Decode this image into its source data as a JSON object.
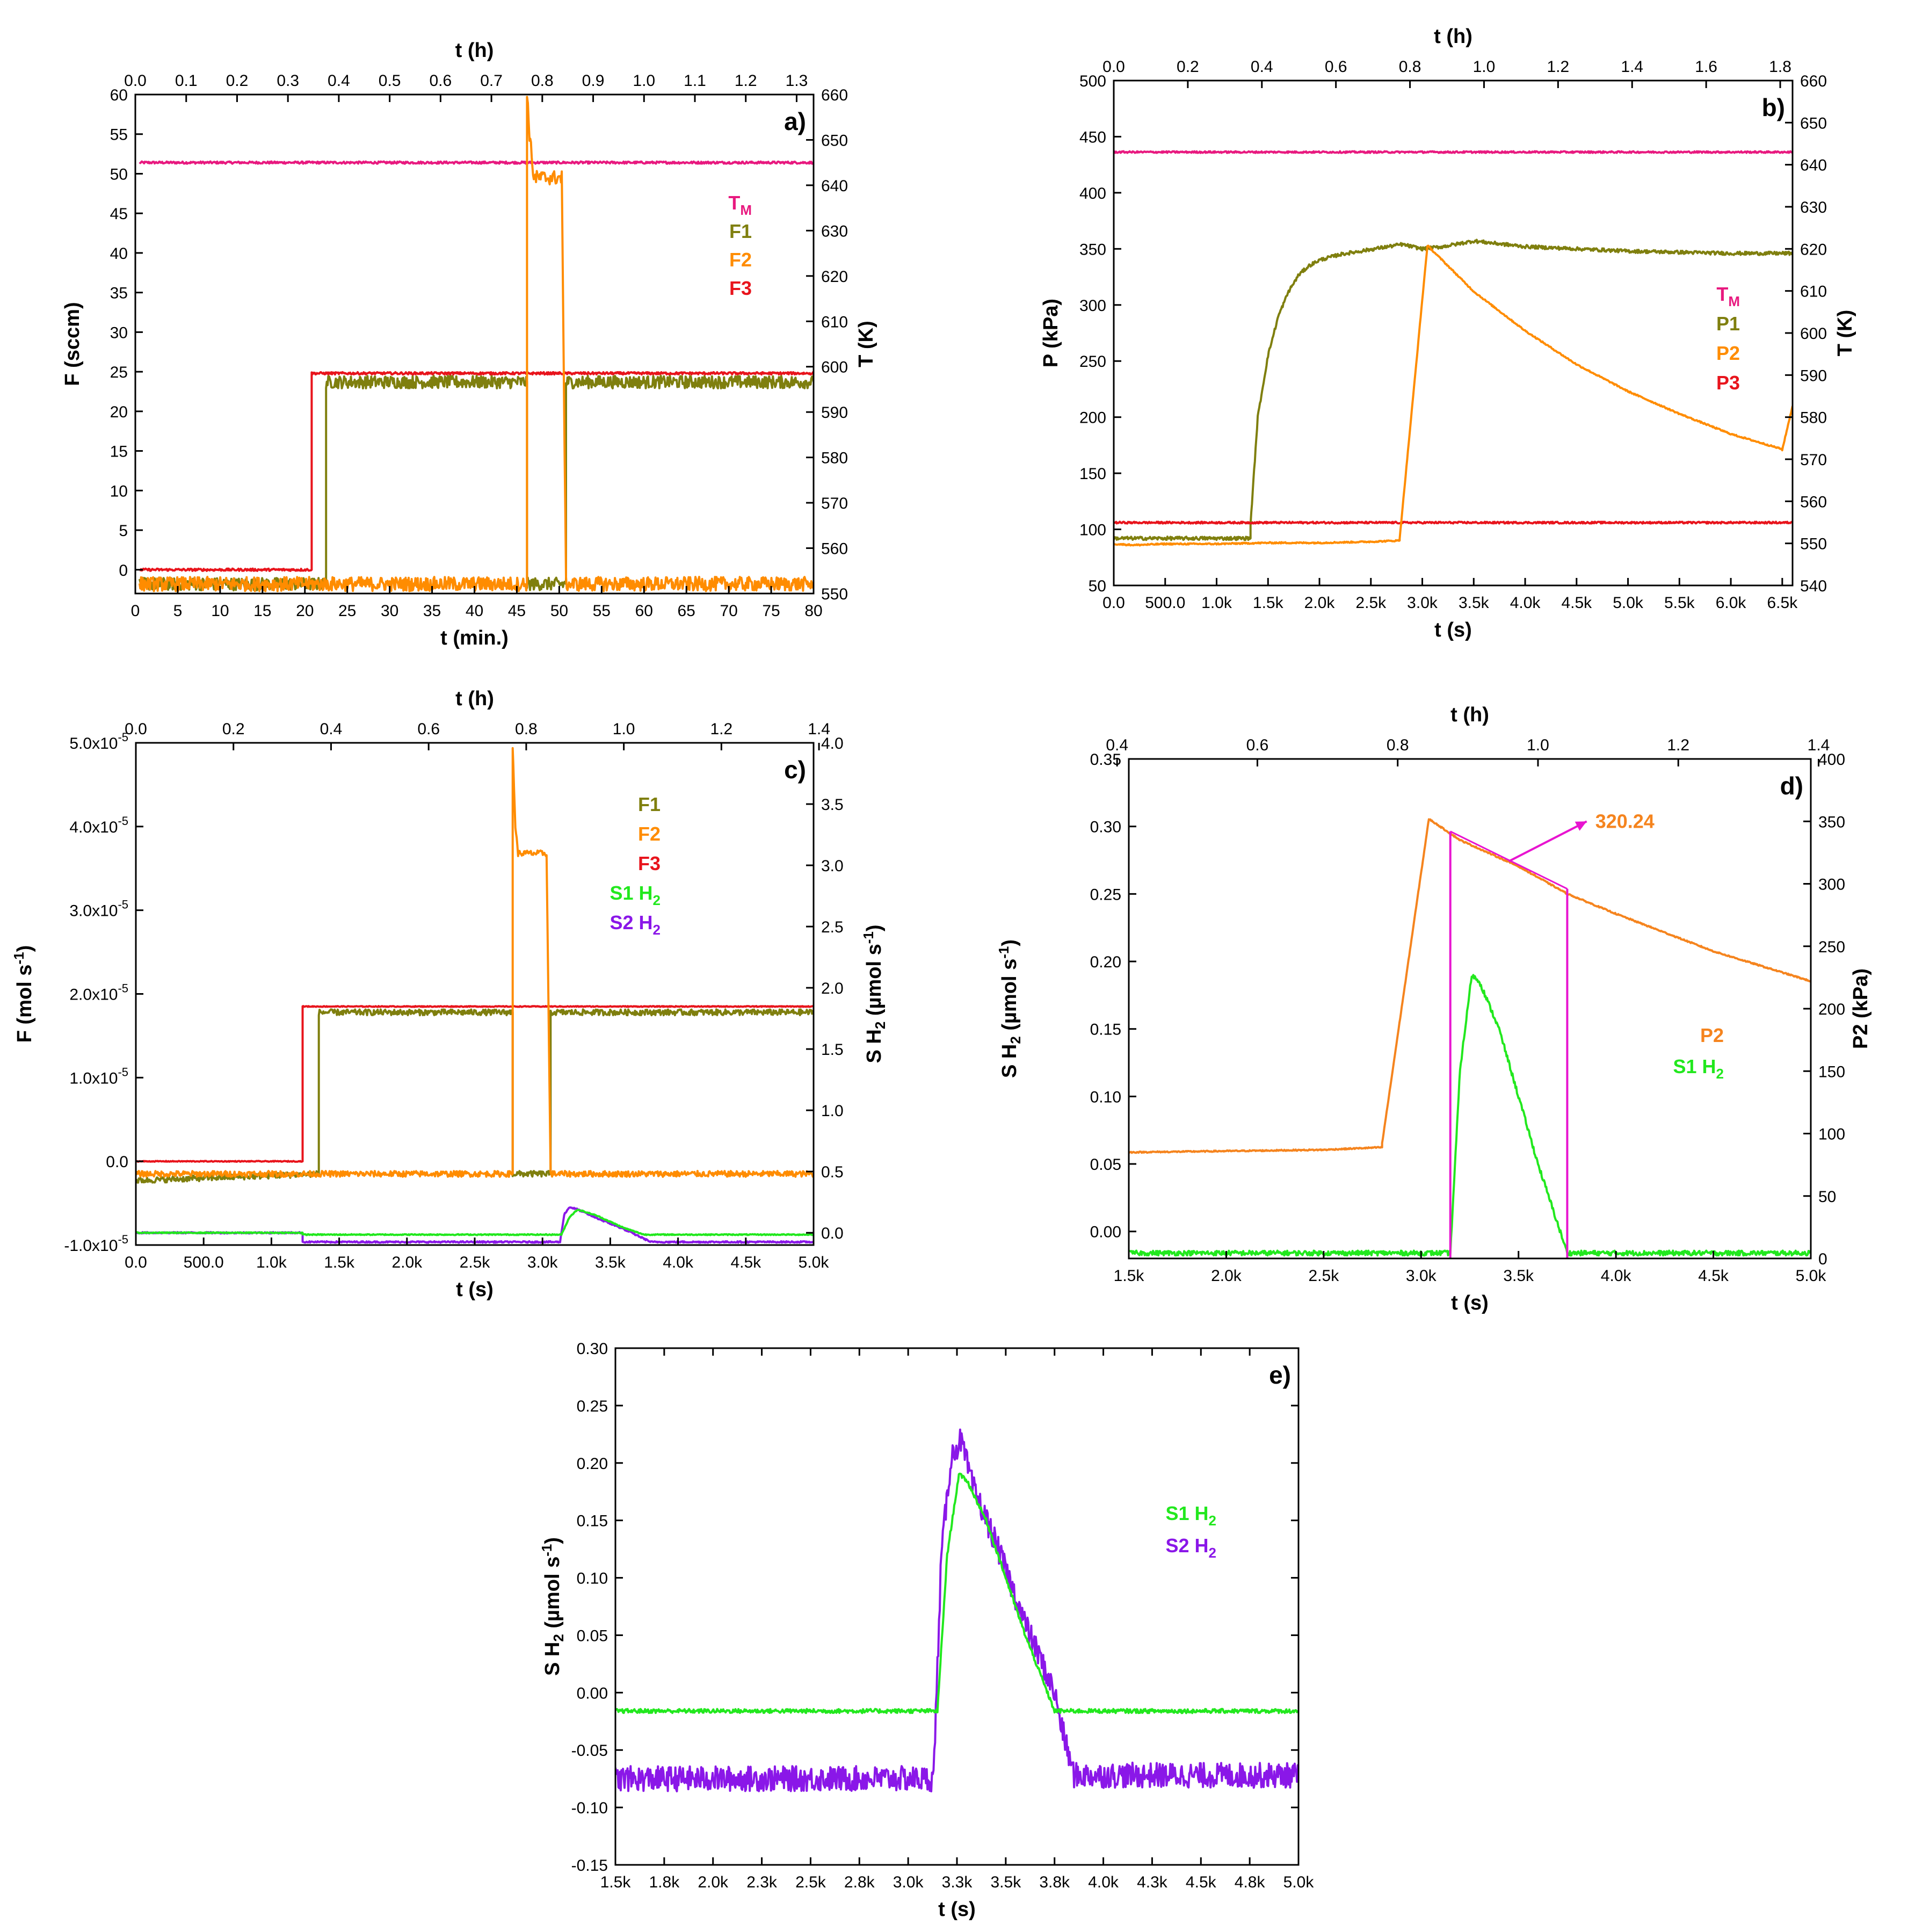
{
  "figure_title": "",
  "colors": {
    "TM": "#e8197f",
    "F1": "#7f7f0e",
    "F2": "#ff8c00",
    "F3": "#e8141c",
    "S1": "#22e81e",
    "S2": "#8a17e8",
    "P2_d": "#f5841e",
    "annot": "#e814d0"
  },
  "chart_data": [
    {
      "id": "a",
      "type": "line",
      "panel_label": "a)",
      "xlabel": "t (min.)",
      "top_xlabel": "t (h)",
      "ylabel": "F (sccm)",
      "y2label": "T (K)",
      "xlim": [
        0,
        80
      ],
      "ylim": [
        -3,
        60
      ],
      "y2lim": [
        550,
        660
      ],
      "top_xlim": [
        0,
        1.3333
      ],
      "xticks": [
        "0",
        "5",
        "10",
        "15",
        "20",
        "25",
        "30",
        "35",
        "40",
        "45",
        "50",
        "55",
        "60",
        "65",
        "70",
        "75",
        "80"
      ],
      "xtick_values": [
        0,
        5,
        10,
        15,
        20,
        25,
        30,
        35,
        40,
        45,
        50,
        55,
        60,
        65,
        70,
        75,
        80
      ],
      "top_xticks": [
        "0.0",
        "0.1",
        "0.2",
        "0.3",
        "0.4",
        "0.5",
        "0.6",
        "0.7",
        "0.8",
        "0.9",
        "1.0",
        "1.1",
        "1.2",
        "1.3"
      ],
      "top_xtick_values": [
        0,
        0.1,
        0.2,
        0.3,
        0.4,
        0.5,
        0.6,
        0.7,
        0.8,
        0.9,
        1.0,
        1.1,
        1.2,
        1.3
      ],
      "yticks": [
        "0",
        "5",
        "10",
        "15",
        "20",
        "25",
        "30",
        "35",
        "40",
        "45",
        "50",
        "55",
        "60"
      ],
      "ytick_values": [
        0,
        5,
        10,
        15,
        20,
        25,
        30,
        35,
        40,
        45,
        50,
        55,
        60
      ],
      "y2ticks": [
        "550",
        "560",
        "570",
        "580",
        "590",
        "600",
        "610",
        "620",
        "630",
        "640",
        "650",
        "660"
      ],
      "y2tick_values": [
        550,
        560,
        570,
        580,
        590,
        600,
        610,
        620,
        630,
        640,
        650,
        660
      ],
      "legend": [
        {
          "label": "T",
          "sub": "M",
          "color": "#e8197f"
        },
        {
          "label": "F1",
          "sub": "",
          "color": "#7f7f0e"
        },
        {
          "label": "F2",
          "sub": "",
          "color": "#ff8c00"
        },
        {
          "label": "F3",
          "sub": "",
          "color": "#e8141c"
        }
      ],
      "series": [
        {
          "name": "T_M",
          "color": "#e8197f",
          "axis": "y2",
          "noise": 0.25,
          "x": [
            0.5,
            80
          ],
          "y": [
            645,
            645
          ]
        },
        {
          "name": "F1",
          "color": "#7f7f0e",
          "axis": "y",
          "noise": 0.8,
          "x": [
            0.5,
            22.5,
            22.5,
            46.2,
            46.2,
            50.8,
            50.8,
            80
          ],
          "y": [
            -1.8,
            -1.8,
            23.7,
            23.7,
            -1.8,
            -1.8,
            23.7,
            23.7
          ]
        },
        {
          "name": "F3",
          "color": "#e8141c",
          "axis": "y",
          "noise": 0.15,
          "x": [
            0.5,
            20.8,
            20.8,
            80
          ],
          "y": [
            0,
            0,
            24.8,
            24.8
          ]
        },
        {
          "name": "F2",
          "color": "#ff8c00",
          "axis": "y",
          "noise": 0.9,
          "x": [
            0.5,
            46.2,
            46.2,
            46.5,
            47,
            50.3,
            50.8,
            80
          ],
          "y": [
            -1.8,
            -1.8,
            60,
            55,
            49.5,
            49.5,
            -1.8,
            -1.8
          ]
        }
      ]
    },
    {
      "id": "b",
      "type": "line",
      "panel_label": "b)",
      "xlabel": "t (s)",
      "top_xlabel": "t (h)",
      "ylabel": "P (kPa)",
      "y2label": "T (K)",
      "xlim": [
        0,
        6600
      ],
      "ylim": [
        50,
        500
      ],
      "y2lim": [
        540,
        660
      ],
      "top_xlim": [
        0,
        1.8333
      ],
      "xticks": [
        "0.0",
        "500.0",
        "1.0k",
        "1.5k",
        "2.0k",
        "2.5k",
        "3.0k",
        "3.5k",
        "4.0k",
        "4.5k",
        "5.0k",
        "5.5k",
        "6.0k",
        "6.5k"
      ],
      "xtick_values": [
        0,
        500,
        1000,
        1500,
        2000,
        2500,
        3000,
        3500,
        4000,
        4500,
        5000,
        5500,
        6000,
        6500
      ],
      "top_xticks": [
        "0.0",
        "0.2",
        "0.4",
        "0.6",
        "0.8",
        "1.0",
        "1.2",
        "1.4",
        "1.6",
        "1.8"
      ],
      "top_xtick_values": [
        0,
        0.2,
        0.4,
        0.6,
        0.8,
        1.0,
        1.2,
        1.4,
        1.6,
        1.8
      ],
      "yticks": [
        "50",
        "100",
        "150",
        "200",
        "250",
        "300",
        "350",
        "400",
        "450",
        "500"
      ],
      "ytick_values": [
        50,
        100,
        150,
        200,
        250,
        300,
        350,
        400,
        450,
        500
      ],
      "y2ticks": [
        "540",
        "550",
        "560",
        "570",
        "580",
        "590",
        "600",
        "610",
        "620",
        "630",
        "640",
        "650",
        "660"
      ],
      "y2tick_values": [
        540,
        550,
        560,
        570,
        580,
        590,
        600,
        610,
        620,
        630,
        640,
        650,
        660
      ],
      "legend": [
        {
          "label": "T",
          "sub": "M",
          "color": "#e8197f"
        },
        {
          "label": "P1",
          "sub": "",
          "color": "#7f7f0e"
        },
        {
          "label": "P2",
          "sub": "",
          "color": "#ff8c00"
        },
        {
          "label": "P3",
          "sub": "",
          "color": "#e8141c"
        }
      ],
      "series": [
        {
          "name": "T_M",
          "color": "#e8197f",
          "axis": "y2",
          "noise": 0.2,
          "x": [
            0,
            6600
          ],
          "y": [
            643,
            643
          ]
        },
        {
          "name": "P1",
          "color": "#7f7f0e",
          "axis": "y",
          "noise": 1.5,
          "x": [
            0,
            1330,
            1330,
            1400,
            1500,
            1600,
            1700,
            1800,
            1900,
            2000,
            2200,
            2400,
            2600,
            2800,
            3000,
            3200,
            3500,
            4000,
            5000,
            6000,
            6600
          ],
          "y": [
            92,
            92,
            105,
            200,
            255,
            290,
            312,
            327,
            335,
            340,
            345,
            348,
            351,
            354,
            350,
            352,
            357,
            352,
            348,
            346,
            346
          ]
        },
        {
          "name": "P3",
          "color": "#e8141c",
          "axis": "y",
          "noise": 0.8,
          "x": [
            0,
            6600
          ],
          "y": [
            106,
            106
          ]
        },
        {
          "name": "P2",
          "color": "#ff8c00",
          "axis": "y",
          "noise": 0.6,
          "x": [
            0,
            200,
            500,
            1000,
            1500,
            2000,
            2500,
            2780,
            2780,
            3050,
            3500,
            4000,
            4500,
            5000,
            5500,
            6000,
            6480,
            6500,
            6600
          ],
          "y": [
            87,
            86,
            87,
            87,
            88,
            88,
            89,
            90,
            92,
            353,
            312,
            277,
            247,
            223,
            203,
            185,
            172,
            171,
            210
          ]
        }
      ]
    },
    {
      "id": "c",
      "type": "line",
      "panel_label": "c)",
      "xlabel": "t (s)",
      "top_xlabel": "t (h)",
      "ylabel": "F (mol s",
      "ylabel_sup": "-1",
      "ylabel_end": ")",
      "y2label": "S H",
      "y2label_sub": "2",
      "y2label_mid": " (µmol s",
      "y2label_sup": "-1",
      "y2label_end": ")",
      "xlim": [
        0,
        5000
      ],
      "ylim": [
        -1e-05,
        5e-05
      ],
      "y2lim": [
        -0.1,
        4.0
      ],
      "top_xlim": [
        0,
        1.3889
      ],
      "xticks": [
        "0.0",
        "500.0",
        "1.0k",
        "1.5k",
        "2.0k",
        "2.5k",
        "3.0k",
        "3.5k",
        "4.0k",
        "4.5k",
        "5.0k"
      ],
      "xtick_values": [
        0,
        500,
        1000,
        1500,
        2000,
        2500,
        3000,
        3500,
        4000,
        4500,
        5000
      ],
      "top_xticks": [
        "0.0",
        "0.2",
        "0.4",
        "0.6",
        "0.8",
        "1.0",
        "1.2",
        "1.4"
      ],
      "top_xtick_values": [
        0,
        0.2,
        0.4,
        0.6,
        0.8,
        1.0,
        1.2,
        1.4
      ],
      "yticks_mant": [
        "-1.0x10",
        "0.0",
        "1.0x10",
        "2.0x10",
        "3.0x10",
        "4.0x10",
        "5.0x10"
      ],
      "yticks_exp": [
        "-5",
        "",
        "-5",
        "-5",
        "-5",
        "-5",
        "-5"
      ],
      "ytick_values": [
        -1e-05,
        0,
        1e-05,
        2e-05,
        3e-05,
        4e-05,
        5e-05
      ],
      "y2ticks": [
        "0.0",
        "0.5",
        "1.0",
        "1.5",
        "2.0",
        "2.5",
        "3.0",
        "3.5",
        "4.0"
      ],
      "y2tick_values": [
        0,
        0.5,
        1.0,
        1.5,
        2.0,
        2.5,
        3.0,
        3.5,
        4.0
      ],
      "legend": [
        {
          "label": "F1",
          "sub": "",
          "color": "#7f7f0e"
        },
        {
          "label": "F2",
          "sub": "",
          "color": "#ff8c00"
        },
        {
          "label": "F3",
          "sub": "",
          "color": "#e8141c"
        },
        {
          "label": "S1 H",
          "sub": "2",
          "color": "#22e81e"
        },
        {
          "label": "S2 H",
          "sub": "2",
          "color": "#8a17e8"
        }
      ],
      "series": [
        {
          "name": "F1",
          "color": "#7f7f0e",
          "axis": "y",
          "noise": 3.5e-07,
          "x": [
            0,
            1350,
            1350,
            2780,
            2780,
            3060,
            3060,
            5000
          ],
          "y": [
            -2.3e-06,
            -1.5e-06,
            1.78e-05,
            1.78e-05,
            -1.5e-06,
            -1.5e-06,
            1.78e-05,
            1.78e-05
          ]
        },
        {
          "name": "F3",
          "color": "#e8141c",
          "axis": "y",
          "noise": 5e-08,
          "x": [
            0,
            1230,
            1230,
            5000
          ],
          "y": [
            0,
            0,
            1.85e-05,
            1.85e-05
          ]
        },
        {
          "name": "F2",
          "color": "#ff8c00",
          "axis": "y",
          "noise": 3.5e-07,
          "x": [
            0,
            2780,
            2780,
            2800,
            2820,
            3030,
            3060,
            5000
          ],
          "y": [
            -1.5e-06,
            -1.5e-06,
            4.95e-05,
            4e-05,
            3.68e-05,
            3.68e-05,
            -1.5e-06,
            -1.5e-06
          ]
        },
        {
          "name": "S2 H2",
          "color": "#8a17e8",
          "axis": "y2",
          "noise": 0.006,
          "x": [
            0,
            1230,
            1230,
            3130,
            3160,
            3200,
            3260,
            3400,
            3600,
            3800,
            5000
          ],
          "y": [
            0.0,
            0.0,
            -0.075,
            -0.075,
            0.15,
            0.21,
            0.19,
            0.12,
            0.03,
            -0.075,
            -0.075
          ]
        },
        {
          "name": "S1 H2",
          "color": "#22e81e",
          "axis": "y2",
          "noise": 0.004,
          "x": [
            0,
            1230,
            1230,
            3140,
            3200,
            3260,
            3400,
            3600,
            3750,
            5000
          ],
          "y": [
            0.0,
            0.0,
            -0.015,
            -0.015,
            0.13,
            0.19,
            0.14,
            0.04,
            -0.015,
            -0.015
          ]
        }
      ]
    },
    {
      "id": "d",
      "type": "line",
      "panel_label": "d)",
      "xlabel": "t (s)",
      "top_xlabel": "t (h)",
      "ylabel": "S H",
      "ylabel_sub": "2",
      "ylabel_mid": " (µmol s",
      "ylabel_sup": "-1",
      "ylabel_end": ")",
      "y2label": "P2 (kPa)",
      "xlim": [
        1500,
        5000
      ],
      "ylim": [
        -0.02,
        0.35
      ],
      "y2lim": [
        0,
        400
      ],
      "top_xlim": [
        0.4167,
        1.3889
      ],
      "xticks": [
        "1.5k",
        "2.0k",
        "2.5k",
        "3.0k",
        "3.5k",
        "4.0k",
        "4.5k",
        "5.0k"
      ],
      "xtick_values": [
        1500,
        2000,
        2500,
        3000,
        3500,
        4000,
        4500,
        5000
      ],
      "top_xticks": [
        "0.4",
        "0.6",
        "0.8",
        "1.0",
        "1.2",
        "1.4"
      ],
      "top_xtick_values": [
        0.4,
        0.6,
        0.8,
        1.0,
        1.2,
        1.4
      ],
      "yticks": [
        "0.00",
        "0.05",
        "0.10",
        "0.15",
        "0.20",
        "0.25",
        "0.30",
        "0.35"
      ],
      "ytick_values": [
        0,
        0.05,
        0.1,
        0.15,
        0.2,
        0.25,
        0.3,
        0.35
      ],
      "y2ticks": [
        "0",
        "50",
        "100",
        "150",
        "200",
        "250",
        "300",
        "350",
        "400"
      ],
      "y2tick_values": [
        0,
        50,
        100,
        150,
        200,
        250,
        300,
        350,
        400
      ],
      "annotation": "320.24",
      "legend": [
        {
          "label": "P2",
          "sub": "",
          "color": "#f5841e"
        },
        {
          "label": "S1 H",
          "sub": "2",
          "color": "#22e81e"
        }
      ],
      "series": [
        {
          "name": "P2",
          "color": "#f5841e",
          "axis": "y2",
          "noise": 0.5,
          "x": [
            1500,
            2000,
            2500,
            2800,
            2800,
            3040,
            3200,
            3500,
            3750,
            4000,
            4500,
            5000
          ],
          "y": [
            85,
            86,
            87,
            89,
            92,
            352,
            335,
            314,
            292,
            276,
            246,
            222
          ]
        },
        {
          "name": "S1 H2",
          "color": "#22e81e",
          "axis": "y",
          "noise": 0.0018,
          "x": [
            1500,
            3150,
            3150,
            3200,
            3260,
            3300,
            3400,
            3500,
            3600,
            3750,
            3760,
            5000
          ],
          "y": [
            -0.016,
            -0.016,
            -0.016,
            0.12,
            0.19,
            0.185,
            0.15,
            0.1,
            0.05,
            -0.016,
            -0.016,
            -0.016
          ]
        }
      ],
      "markers": [
        {
          "name": "integration-start",
          "x": 3150,
          "y2_from": 0,
          "y2_to": 342
        },
        {
          "name": "integration-end",
          "x": 3750,
          "y2_from": 0,
          "y2_to": 296
        }
      ]
    },
    {
      "id": "e",
      "type": "line",
      "panel_label": "e)",
      "xlabel": "t (s)",
      "ylabel": "S H",
      "ylabel_sub": "2",
      "ylabel_mid": " (µmol s",
      "ylabel_sup": "-1",
      "ylabel_end": ")",
      "xlim": [
        1500,
        5000
      ],
      "ylim": [
        -0.15,
        0.3
      ],
      "xticks": [
        "1.5k",
        "1.8k",
        "2.0k",
        "2.3k",
        "2.5k",
        "2.8k",
        "3.0k",
        "3.3k",
        "3.5k",
        "3.8k",
        "4.0k",
        "4.3k",
        "4.5k",
        "4.8k",
        "5.0k"
      ],
      "xtick_values": [
        1500,
        1750,
        2000,
        2250,
        2500,
        2750,
        3000,
        3250,
        3500,
        3750,
        4000,
        4250,
        4500,
        4750,
        5000
      ],
      "yticks": [
        "-0.15",
        "-0.10",
        "-0.05",
        "0.00",
        "0.05",
        "0.10",
        "0.15",
        "0.20",
        "0.25",
        "0.30"
      ],
      "ytick_values": [
        -0.15,
        -0.1,
        -0.05,
        0,
        0.05,
        0.1,
        0.15,
        0.2,
        0.25,
        0.3
      ],
      "legend": [
        {
          "label": "S1 H",
          "sub": "2",
          "color": "#22e81e"
        },
        {
          "label": "S2 H",
          "sub": "2",
          "color": "#8a17e8"
        }
      ],
      "series": [
        {
          "name": "S2 H2",
          "color": "#8a17e8",
          "axis": "y",
          "noise": 0.011,
          "x": [
            1500,
            3130,
            3170,
            3220,
            3270,
            3330,
            3450,
            3600,
            3750,
            3800,
            3850,
            5000
          ],
          "y": [
            -0.075,
            -0.075,
            0.12,
            0.205,
            0.22,
            0.18,
            0.13,
            0.06,
            0.0,
            -0.04,
            -0.072,
            -0.072
          ]
        },
        {
          "name": "S1 H2",
          "color": "#22e81e",
          "axis": "y",
          "noise": 0.0018,
          "x": [
            1500,
            3150,
            3200,
            3260,
            3300,
            3400,
            3500,
            3600,
            3750,
            3760,
            5000
          ],
          "y": [
            -0.016,
            -0.016,
            0.12,
            0.19,
            0.185,
            0.15,
            0.1,
            0.05,
            -0.016,
            -0.016,
            -0.016
          ]
        }
      ]
    }
  ]
}
